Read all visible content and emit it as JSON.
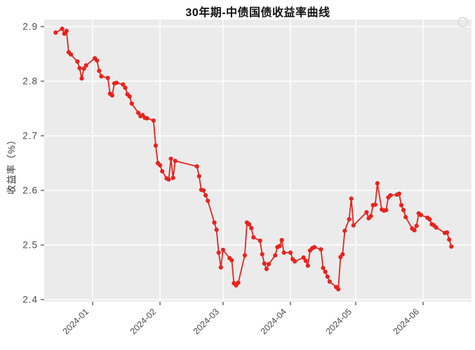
{
  "chart_data": {
    "type": "line",
    "title": "30年期-中债国债收益率曲线",
    "ylabel": "收益率（%）",
    "xlabel": "",
    "ylim": [
      2.4,
      2.9
    ],
    "grid": true,
    "legend": false,
    "styles": {
      "plot_background": "#ebebeb",
      "grid_color": "#ffffff",
      "line_color": "#e8231d",
      "point_color": "#e8231d",
      "tick_text_color": "#4a4a4a",
      "axis_tick_color": "#333333",
      "watermark_color": "#dcdcdc"
    },
    "y_ticks": [
      {
        "value": 2.4,
        "label": "2.4"
      },
      {
        "value": 2.5,
        "label": "2.5"
      },
      {
        "value": 2.6,
        "label": "2.6"
      },
      {
        "value": 2.7,
        "label": "2.7"
      },
      {
        "value": 2.8,
        "label": "2.8"
      },
      {
        "value": 2.9,
        "label": "2.9"
      }
    ],
    "x_ticks": [
      {
        "date": "2024-01-01",
        "label": "2024-01"
      },
      {
        "date": "2024-02-01",
        "label": "2024-02"
      },
      {
        "date": "2024-03-01",
        "label": "2024-03"
      },
      {
        "date": "2024-04-01",
        "label": "2024-04"
      },
      {
        "date": "2024-05-01",
        "label": "2024-05"
      },
      {
        "date": "2024-06-01",
        "label": "2024-06"
      }
    ],
    "points": [
      [
        "2023-12-15",
        2.889
      ],
      [
        "2023-12-18",
        2.896
      ],
      [
        "2023-12-19",
        2.887
      ],
      [
        "2023-12-20",
        2.892
      ],
      [
        "2023-12-21",
        2.853
      ],
      [
        "2023-12-22",
        2.849
      ],
      [
        "2023-12-25",
        2.836
      ],
      [
        "2023-12-26",
        2.824
      ],
      [
        "2023-12-27",
        2.805
      ],
      [
        "2023-12-28",
        2.823
      ],
      [
        "2023-12-29",
        2.829
      ],
      [
        "2024-01-02",
        2.842
      ],
      [
        "2024-01-03",
        2.838
      ],
      [
        "2024-01-04",
        2.819
      ],
      [
        "2024-01-05",
        2.809
      ],
      [
        "2024-01-08",
        2.806
      ],
      [
        "2024-01-09",
        2.777
      ],
      [
        "2024-01-10",
        2.774
      ],
      [
        "2024-01-11",
        2.796
      ],
      [
        "2024-01-12",
        2.797
      ],
      [
        "2024-01-15",
        2.794
      ],
      [
        "2024-01-16",
        2.788
      ],
      [
        "2024-01-17",
        2.776
      ],
      [
        "2024-01-18",
        2.772
      ],
      [
        "2024-01-19",
        2.759
      ],
      [
        "2024-01-22",
        2.742
      ],
      [
        "2024-01-23",
        2.736
      ],
      [
        "2024-01-24",
        2.738
      ],
      [
        "2024-01-25",
        2.733
      ],
      [
        "2024-01-26",
        2.732
      ],
      [
        "2024-01-29",
        2.728
      ],
      [
        "2024-01-30",
        2.682
      ],
      [
        "2024-01-31",
        2.65
      ],
      [
        "2024-02-01",
        2.646
      ],
      [
        "2024-02-02",
        2.635
      ],
      [
        "2024-02-04",
        2.622
      ],
      [
        "2024-02-05",
        2.62
      ],
      [
        "2024-02-06",
        2.658
      ],
      [
        "2024-02-07",
        2.623
      ],
      [
        "2024-02-08",
        2.654
      ],
      [
        "2024-02-18",
        2.644
      ],
      [
        "2024-02-19",
        2.626
      ],
      [
        "2024-02-20",
        2.601
      ],
      [
        "2024-02-21",
        2.6
      ],
      [
        "2024-02-22",
        2.591
      ],
      [
        "2024-02-23",
        2.581
      ],
      [
        "2024-02-26",
        2.541
      ],
      [
        "2024-02-27",
        2.528
      ],
      [
        "2024-02-28",
        2.486
      ],
      [
        "2024-02-29",
        2.459
      ],
      [
        "2024-03-01",
        2.491
      ],
      [
        "2024-03-04",
        2.476
      ],
      [
        "2024-03-05",
        2.472
      ],
      [
        "2024-03-06",
        2.43
      ],
      [
        "2024-03-07",
        2.426
      ],
      [
        "2024-03-08",
        2.431
      ],
      [
        "2024-03-11",
        2.481
      ],
      [
        "2024-03-12",
        2.541
      ],
      [
        "2024-03-13",
        2.538
      ],
      [
        "2024-03-14",
        2.531
      ],
      [
        "2024-03-15",
        2.514
      ],
      [
        "2024-03-18",
        2.508
      ],
      [
        "2024-03-19",
        2.483
      ],
      [
        "2024-03-20",
        2.466
      ],
      [
        "2024-03-21",
        2.456
      ],
      [
        "2024-03-22",
        2.465
      ],
      [
        "2024-03-25",
        2.481
      ],
      [
        "2024-03-26",
        2.496
      ],
      [
        "2024-03-27",
        2.498
      ],
      [
        "2024-03-28",
        2.509
      ],
      [
        "2024-03-29",
        2.486
      ],
      [
        "2024-04-01",
        2.486
      ],
      [
        "2024-04-02",
        2.474
      ],
      [
        "2024-04-03",
        2.47
      ],
      [
        "2024-04-07",
        2.477
      ],
      [
        "2024-04-08",
        2.471
      ],
      [
        "2024-04-09",
        2.462
      ],
      [
        "2024-04-10",
        2.49
      ],
      [
        "2024-04-11",
        2.494
      ],
      [
        "2024-04-12",
        2.496
      ],
      [
        "2024-04-15",
        2.492
      ],
      [
        "2024-04-16",
        2.458
      ],
      [
        "2024-04-17",
        2.451
      ],
      [
        "2024-04-18",
        2.442
      ],
      [
        "2024-04-19",
        2.433
      ],
      [
        "2024-04-22",
        2.423
      ],
      [
        "2024-04-23",
        2.419
      ],
      [
        "2024-04-24",
        2.478
      ],
      [
        "2024-04-25",
        2.483
      ],
      [
        "2024-04-26",
        2.526
      ],
      [
        "2024-04-28",
        2.547
      ],
      [
        "2024-04-29",
        2.585
      ],
      [
        "2024-04-30",
        2.536
      ],
      [
        "2024-05-06",
        2.56
      ],
      [
        "2024-05-07",
        2.549
      ],
      [
        "2024-05-08",
        2.553
      ],
      [
        "2024-05-09",
        2.573
      ],
      [
        "2024-05-10",
        2.574
      ],
      [
        "2024-05-11",
        2.613
      ],
      [
        "2024-05-13",
        2.565
      ],
      [
        "2024-05-14",
        2.563
      ],
      [
        "2024-05-15",
        2.564
      ],
      [
        "2024-05-16",
        2.587
      ],
      [
        "2024-05-17",
        2.591
      ],
      [
        "2024-05-20",
        2.592
      ],
      [
        "2024-05-21",
        2.594
      ],
      [
        "2024-05-22",
        2.573
      ],
      [
        "2024-05-23",
        2.564
      ],
      [
        "2024-05-24",
        2.551
      ],
      [
        "2024-05-27",
        2.53
      ],
      [
        "2024-05-28",
        2.527
      ],
      [
        "2024-05-29",
        2.535
      ],
      [
        "2024-05-30",
        2.558
      ],
      [
        "2024-05-31",
        2.555
      ],
      [
        "2024-06-03",
        2.55
      ],
      [
        "2024-06-04",
        2.547
      ],
      [
        "2024-06-05",
        2.538
      ],
      [
        "2024-06-06",
        2.536
      ],
      [
        "2024-06-07",
        2.532
      ],
      [
        "2024-06-11",
        2.522
      ],
      [
        "2024-06-12",
        2.523
      ],
      [
        "2024-06-13",
        2.51
      ],
      [
        "2024-06-14",
        2.497
      ]
    ]
  }
}
